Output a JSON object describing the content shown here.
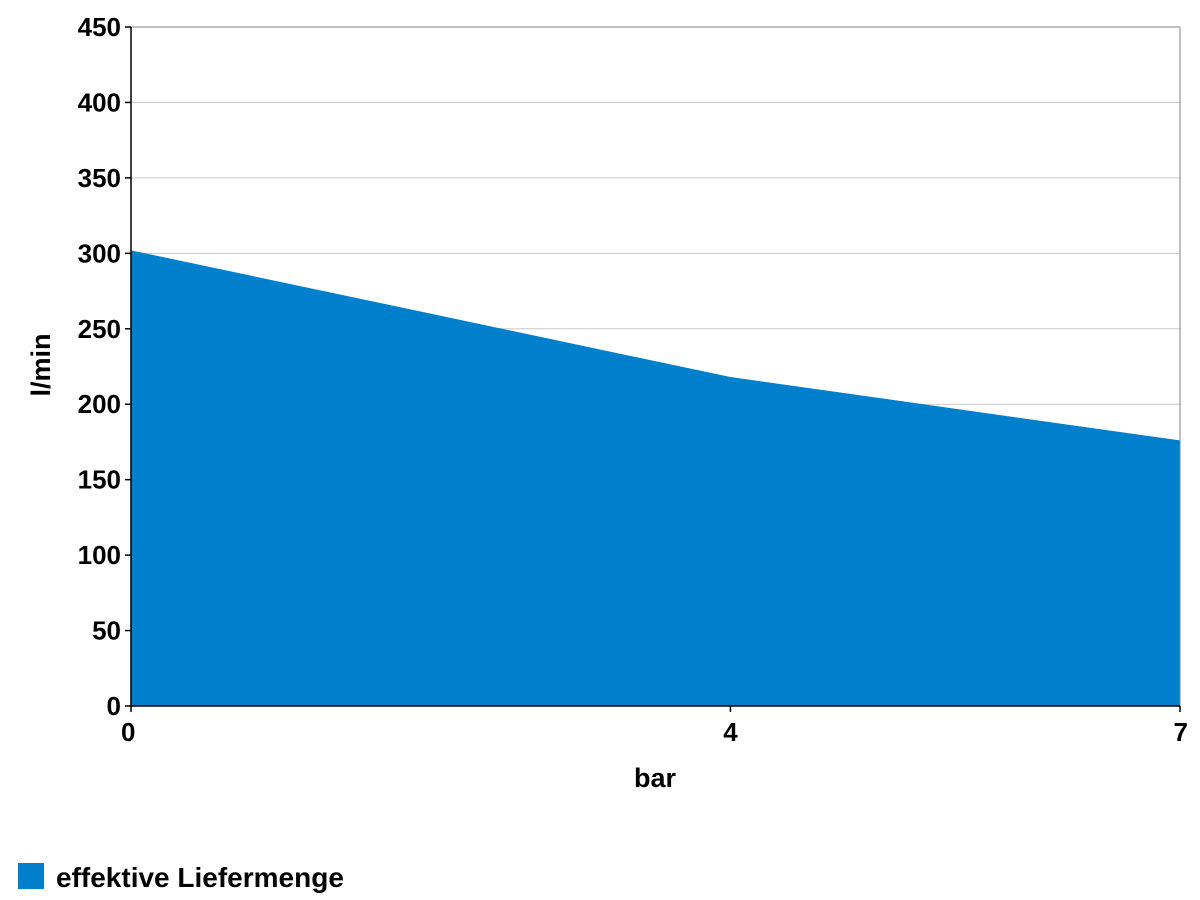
{
  "chart_data": {
    "type": "area",
    "x": [
      0,
      4,
      7
    ],
    "xticks": [
      0,
      4,
      7
    ],
    "xtick_labels": [
      "0",
      "4",
      "7"
    ],
    "xlim": [
      0,
      7
    ],
    "yticks": [
      0,
      50,
      100,
      150,
      200,
      250,
      300,
      350,
      400,
      450
    ],
    "ytick_labels": [
      "0",
      "50",
      "100",
      "150",
      "200",
      "250",
      "300",
      "350",
      "400",
      "450"
    ],
    "ylim": [
      0,
      450
    ],
    "xlabel": "bar",
    "ylabel": "l/min",
    "grid": "horizontal",
    "legend_position": "bottom-left",
    "series": [
      {
        "name": "effektive Liefermenge",
        "color": "#0080CC",
        "values": [
          302,
          218,
          176
        ]
      }
    ]
  }
}
